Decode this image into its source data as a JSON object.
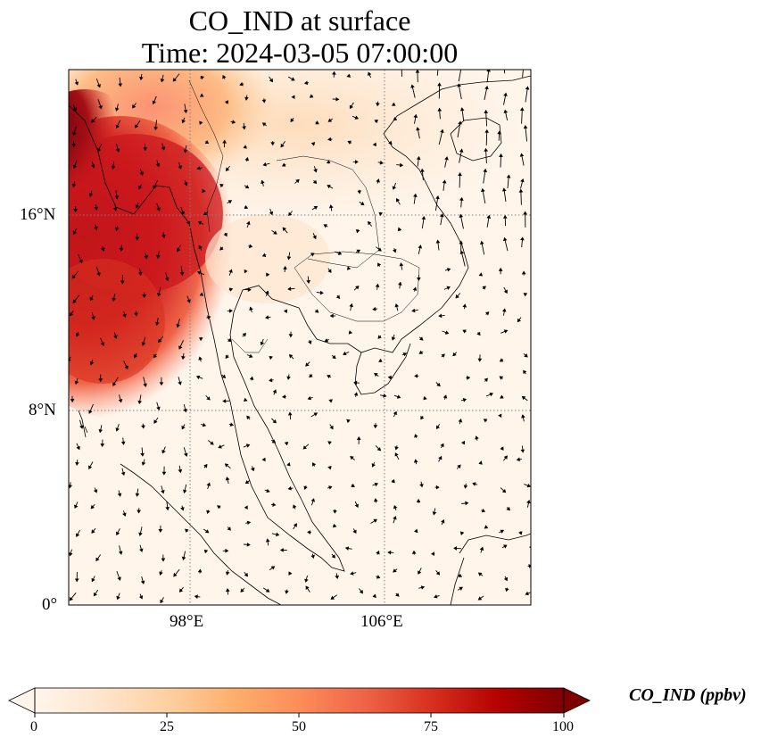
{
  "title": {
    "line1": "CO_IND at surface",
    "line2": "Time: 2024-03-05 07:00:00"
  },
  "axes": {
    "lat_ticks": [
      {
        "label": "16°N",
        "value": 16
      },
      {
        "label": "8°N",
        "value": 8
      },
      {
        "label": "0°",
        "value": 0
      }
    ],
    "lon_ticks": [
      {
        "label": "98°E",
        "value": 98
      },
      {
        "label": "106°E",
        "value": 106
      }
    ],
    "lon_range": [
      93,
      112
    ],
    "lat_range": [
      0,
      22
    ],
    "gridlines": "dotted"
  },
  "colorbar": {
    "label": "CO_IND (ppbv)",
    "ticks": [
      "0",
      "25",
      "50",
      "75",
      "100"
    ],
    "range": [
      0,
      100
    ],
    "colormap": [
      "#fff5eb",
      "#fdd0a2",
      "#fd8d3c",
      "#d94801",
      "#7f2704"
    ],
    "extend": "both"
  },
  "colors": {
    "coast": "#000000",
    "grid": "#808080"
  }
}
